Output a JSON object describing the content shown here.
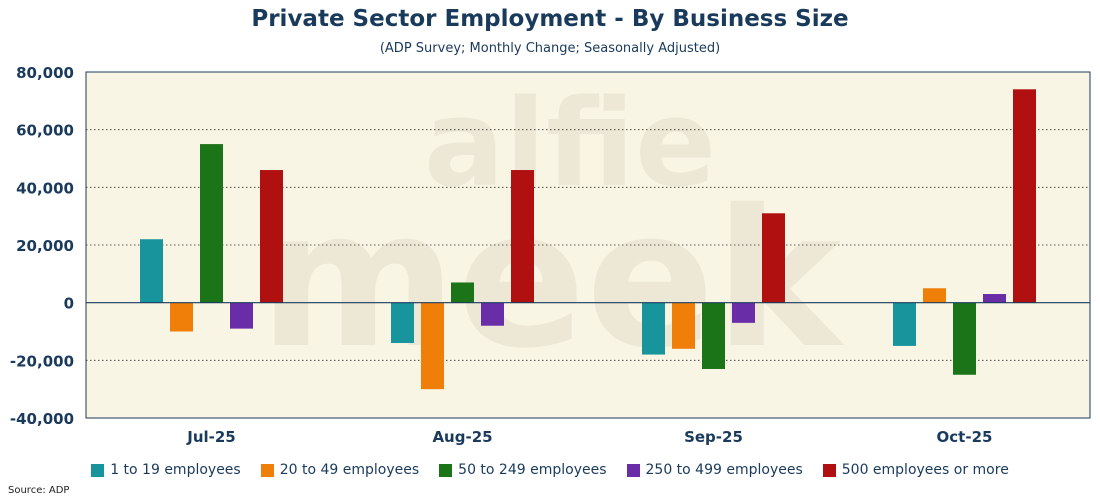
{
  "chart_data": {
    "type": "bar",
    "title": "Private Sector Employment - By Business Size",
    "subtitle": "(ADP Survey; Monthly Change; Seasonally Adjusted)",
    "categories": [
      "Jul-25",
      "Aug-25",
      "Sep-25",
      "Oct-25"
    ],
    "ylim": [
      -40000,
      80000
    ],
    "yticks": [
      80000,
      60000,
      40000,
      20000,
      0,
      -20000,
      -40000
    ],
    "ytick_labels": [
      "80,000",
      "60,000",
      "40,000",
      "20,000",
      "0",
      "-20,000",
      "-40,000"
    ],
    "grid": true,
    "legend_position": "bottom",
    "series": [
      {
        "name": "1 to 19 employees",
        "color": "#17949c",
        "values": [
          22000,
          -14000,
          -18000,
          -15000
        ]
      },
      {
        "name": "20 to 49 employees",
        "color": "#f07f09",
        "values": [
          -10000,
          -30000,
          -16000,
          5000
        ]
      },
      {
        "name": "50 to 249 employees",
        "color": "#1c7418",
        "values": [
          55000,
          7000,
          -23000,
          -25000
        ]
      },
      {
        "name": "250 to 499 employees",
        "color": "#6a2da8",
        "values": [
          -9000,
          -8000,
          -7000,
          3000
        ]
      },
      {
        "name": "500 employees or more",
        "color": "#b01010",
        "values": [
          46000,
          46000,
          31000,
          74000
        ]
      }
    ]
  },
  "watermark": {
    "line1": "alfie",
    "line2": "meek"
  },
  "source": "Source: ADP",
  "colors": {
    "plot_background": "#f8f5e4",
    "axis": "#1a3a5c",
    "text": "#1a3a5c"
  }
}
